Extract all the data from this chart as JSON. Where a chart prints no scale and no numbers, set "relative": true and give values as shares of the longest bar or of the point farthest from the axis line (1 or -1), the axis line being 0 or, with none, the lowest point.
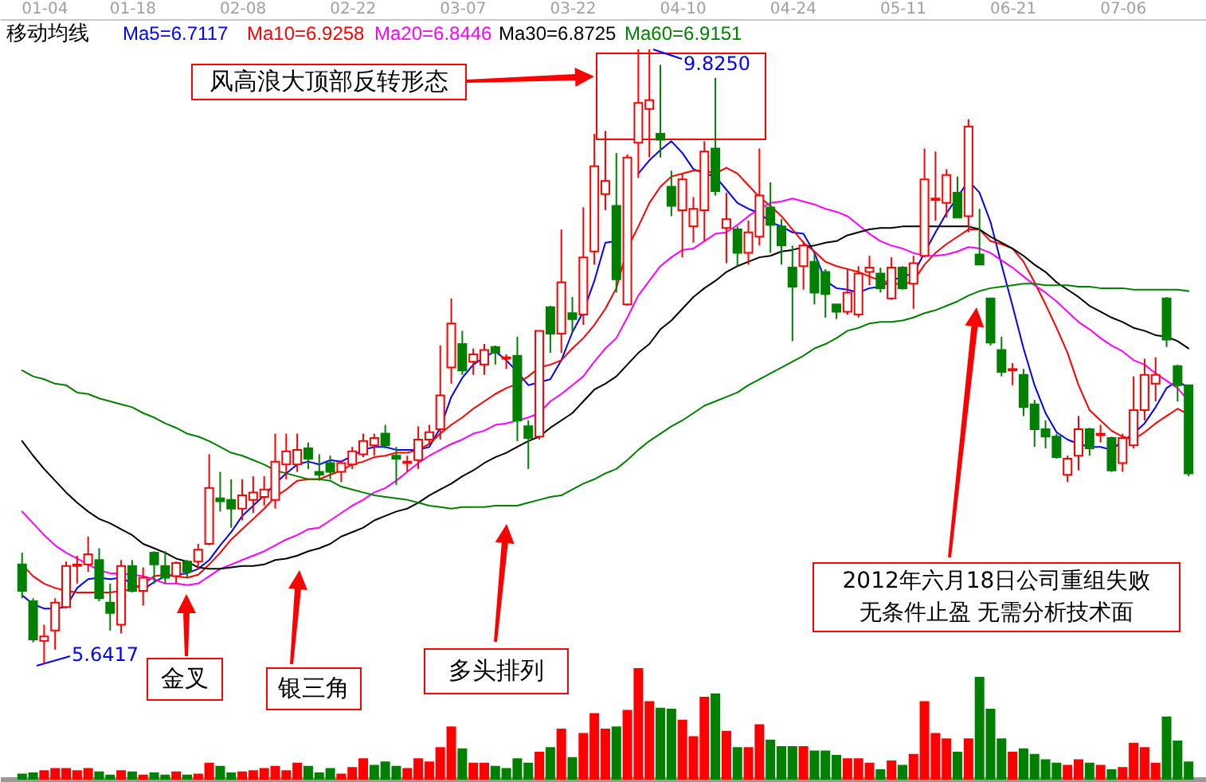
{
  "chart_data": [
    {
      "type": "candlestick",
      "title": "移动均线",
      "categories": [
        null,
        null,
        "01-04",
        null,
        null,
        null,
        null,
        null,
        null,
        null,
        "01-18",
        null,
        null,
        null,
        null,
        null,
        null,
        null,
        null,
        null,
        "02-08",
        null,
        null,
        null,
        null,
        null,
        null,
        null,
        null,
        null,
        "02-22",
        null,
        null,
        null,
        null,
        null,
        null,
        null,
        null,
        null,
        "03-07",
        null,
        null,
        null,
        null,
        null,
        null,
        null,
        null,
        null,
        "03-22",
        null,
        null,
        null,
        null,
        null,
        null,
        null,
        null,
        null,
        "04-10",
        null,
        null,
        null,
        null,
        null,
        null,
        null,
        null,
        null,
        "04-24",
        null,
        null,
        null,
        null,
        null,
        null,
        null,
        null,
        null,
        "05-11",
        null,
        null,
        null,
        null,
        null,
        null,
        null,
        null,
        null,
        "06-21",
        null,
        null,
        null,
        null,
        null,
        null,
        null,
        null,
        null,
        "07-06",
        null,
        null,
        null,
        null,
        null,
        null
      ],
      "ohlc": [
        [
          6.32,
          6.4,
          6.09,
          6.14
        ],
        [
          6.07,
          6.09,
          5.79,
          5.81
        ],
        [
          5.8,
          5.91,
          5.6417,
          5.83
        ],
        [
          5.87,
          6.09,
          5.74,
          6.06
        ],
        [
          6.03,
          6.34,
          6.02,
          6.31
        ],
        [
          6.31,
          6.38,
          6.19,
          6.32
        ],
        [
          6.32,
          6.51,
          6.27,
          6.39
        ],
        [
          6.35,
          6.43,
          6.07,
          6.09
        ],
        [
          6.06,
          6.19,
          5.87,
          5.99
        ],
        [
          5.91,
          6.35,
          5.85,
          6.31
        ],
        [
          6.31,
          6.35,
          6.13,
          6.14
        ],
        [
          6.14,
          6.3,
          6.04,
          6.23
        ],
        [
          6.4,
          6.41,
          6.19,
          6.32
        ],
        [
          6.31,
          6.41,
          6.19,
          6.23
        ],
        [
          6.24,
          6.34,
          6.19,
          6.33
        ],
        [
          6.34,
          6.35,
          6.23,
          6.27
        ],
        [
          6.34,
          6.46,
          6.29,
          6.42
        ],
        [
          6.46,
          7.07,
          6.45,
          6.84
        ],
        [
          6.77,
          6.95,
          6.68,
          6.75
        ],
        [
          6.76,
          6.9,
          6.57,
          6.7
        ],
        [
          6.7,
          6.9,
          6.62,
          6.79
        ],
        [
          6.76,
          6.92,
          6.67,
          6.81
        ],
        [
          6.78,
          6.92,
          6.72,
          6.83
        ],
        [
          6.76,
          7.21,
          6.7,
          7.02
        ],
        [
          7.0,
          7.21,
          6.9,
          7.09
        ],
        [
          7.0,
          7.21,
          6.95,
          7.1
        ],
        [
          7.11,
          7.15,
          6.97,
          7.04
        ],
        [
          6.95,
          7.07,
          6.89,
          6.93
        ],
        [
          7.01,
          7.06,
          6.9,
          6.95
        ],
        [
          6.95,
          7.03,
          6.88,
          7.01
        ],
        [
          7.0,
          7.12,
          6.97,
          7.09
        ],
        [
          7.07,
          7.21,
          7.05,
          7.16
        ],
        [
          7.13,
          7.21,
          7.06,
          7.18
        ],
        [
          7.21,
          7.27,
          7.11,
          7.13
        ],
        [
          7.06,
          7.12,
          6.86,
          7.04
        ],
        [
          7.01,
          7.06,
          6.95,
          7.02
        ],
        [
          7.03,
          7.26,
          6.97,
          7.17
        ],
        [
          7.17,
          7.27,
          7.14,
          7.22
        ],
        [
          7.24,
          7.81,
          7.17,
          7.47
        ],
        [
          7.66,
          8.13,
          7.55,
          7.96
        ],
        [
          7.82,
          7.91,
          7.61,
          7.64
        ],
        [
          7.7,
          7.79,
          7.61,
          7.75
        ],
        [
          7.68,
          7.82,
          7.61,
          7.78
        ],
        [
          7.8,
          7.81,
          7.68,
          7.76
        ],
        [
          7.72,
          7.75,
          7.65,
          7.73
        ],
        [
          7.74,
          7.87,
          7.16,
          7.3
        ],
        [
          7.26,
          7.3,
          6.97,
          7.18
        ],
        [
          7.19,
          7.91,
          7.17,
          7.91
        ],
        [
          8.07,
          8.08,
          7.76,
          7.89
        ],
        [
          7.89,
          8.6,
          7.76,
          8.24
        ],
        [
          8.03,
          8.14,
          7.9,
          7.99
        ],
        [
          8.02,
          8.75,
          7.95,
          8.41
        ],
        [
          8.45,
          9.25,
          8.36,
          9.03
        ],
        [
          8.84,
          9.27,
          8.73,
          8.93
        ],
        [
          8.76,
          9.12,
          8.17,
          8.26
        ],
        [
          8.09,
          9.11,
          8.08,
          9.09
        ],
        [
          9.19,
          9.825,
          8.95,
          9.46
        ],
        [
          9.42,
          9.825,
          9.09,
          9.48
        ],
        [
          9.25,
          9.72,
          9.09,
          9.21
        ],
        [
          8.89,
          9.0,
          8.69,
          8.76
        ],
        [
          8.73,
          8.98,
          8.41,
          8.94
        ],
        [
          8.62,
          8.82,
          8.51,
          8.74
        ],
        [
          8.73,
          9.2,
          8.52,
          9.13
        ],
        [
          9.15,
          9.63,
          8.83,
          8.86
        ],
        [
          8.61,
          8.85,
          8.37,
          8.67
        ],
        [
          8.6,
          8.62,
          8.35,
          8.44
        ],
        [
          8.44,
          8.66,
          8.36,
          8.58
        ],
        [
          8.55,
          9.15,
          8.49,
          8.83
        ],
        [
          8.75,
          8.92,
          8.44,
          8.63
        ],
        [
          8.62,
          8.67,
          8.36,
          8.49
        ],
        [
          8.34,
          8.49,
          7.84,
          8.21
        ],
        [
          8.35,
          8.52,
          8.19,
          8.49
        ],
        [
          8.38,
          8.44,
          8.09,
          8.17
        ],
        [
          8.31,
          8.33,
          8.0,
          8.16
        ],
        [
          8.09,
          8.09,
          7.99,
          8.04
        ],
        [
          8.04,
          8.33,
          8.02,
          8.17
        ],
        [
          8.02,
          8.35,
          8.0,
          8.3
        ],
        [
          8.31,
          8.42,
          8.22,
          8.34
        ],
        [
          8.3,
          8.34,
          8.17,
          8.2
        ],
        [
          8.13,
          8.41,
          8.12,
          8.34
        ],
        [
          8.34,
          8.35,
          8.19,
          8.2
        ],
        [
          8.23,
          8.42,
          8.06,
          8.37
        ],
        [
          8.42,
          9.15,
          8.41,
          8.94
        ],
        [
          8.8,
          9.13,
          8.66,
          8.81
        ],
        [
          8.78,
          9.01,
          8.68,
          8.97
        ],
        [
          8.85,
          8.96,
          8.68,
          8.68
        ],
        [
          8.69,
          9.35,
          8.58,
          9.3
        ],
        [
          8.43,
          8.74,
          8.36,
          8.36
        ],
        [
          8.13,
          8.13,
          7.81,
          7.83
        ],
        [
          7.78,
          7.87,
          7.6,
          7.63
        ],
        [
          7.64,
          7.69,
          7.54,
          7.65
        ],
        [
          7.61,
          7.65,
          7.33,
          7.39
        ],
        [
          7.41,
          7.44,
          7.12,
          7.24
        ],
        [
          7.24,
          7.3,
          7.11,
          7.19
        ],
        [
          7.19,
          7.21,
          7.04,
          7.05
        ],
        [
          6.93,
          7.06,
          6.88,
          7.04
        ],
        [
          7.06,
          7.33,
          6.96,
          7.24
        ],
        [
          7.24,
          7.25,
          7.06,
          7.11
        ],
        [
          7.2,
          7.27,
          7.15,
          7.21
        ],
        [
          7.18,
          7.19,
          6.95,
          6.96
        ],
        [
          7.01,
          7.21,
          6.95,
          7.18
        ],
        [
          7.13,
          7.6,
          7.11,
          7.37
        ],
        [
          7.37,
          7.72,
          7.3,
          7.61
        ],
        [
          7.55,
          7.73,
          7.43,
          7.61
        ],
        [
          8.13,
          8.14,
          7.8,
          7.85
        ],
        [
          7.67,
          7.68,
          7.43,
          7.54
        ],
        [
          7.54,
          7.54,
          6.92,
          6.94
        ]
      ],
      "series": [
        {
          "name": "Ma5=6.7117",
          "type": "line",
          "color": "#0000ff",
          "values": [
            6.11,
            6.05,
            6.02,
            6.02,
            6.03,
            6.16,
            6.22,
            6.23,
            6.22,
            6.23,
            6.19,
            6.15,
            6.2,
            6.24,
            6.25,
            6.26,
            6.29,
            6.35,
            6.45,
            6.54,
            6.65,
            6.72,
            6.79,
            6.87,
            6.94,
            7.0,
            7.02,
            7.0,
            7.03,
            7.02,
            7.06,
            7.1,
            7.12,
            7.12,
            7.1,
            7.1,
            7.1,
            7.12,
            7.25,
            7.46,
            7.59,
            7.68,
            7.73,
            7.77,
            7.71,
            7.63,
            7.54,
            7.56,
            7.58,
            7.71,
            7.9,
            8.04,
            8.25,
            8.51,
            8.52,
            null,
            8.98,
            9.07,
            9.14,
            9.2,
            9.12,
            9.01,
            8.98,
            8.96,
            8.87,
            8.78,
            8.74,
            8.71,
            8.65,
            8.62,
            8.58,
            8.57,
            8.44,
            8.25,
            8.2,
            8.19,
            8.17,
            8.2,
            8.21,
            8.25,
            8.28,
            8.3,
            8.44,
            8.58,
            8.71,
            8.82,
            8.93,
            8.85,
            8.65,
            8.36,
            8.08,
            7.79,
            7.54,
            7.35,
            7.22,
            7.17,
            7.14,
            7.12,
            7.12,
            7.1,
            7.16,
            7.21,
            7.28,
            7.39,
            7.52,
            7.57,
            7.52
          ]
        },
        {
          "name": "Ma10=6.9258",
          "type": "line",
          "color": "#ff0000",
          "values": [
            6.32,
            6.24,
            6.19,
            6.16,
            6.14,
            6.13,
            6.13,
            6.13,
            6.13,
            6.14,
            6.15,
            6.19,
            6.24,
            6.25,
            6.24,
            6.23,
            6.25,
            6.32,
            6.4,
            6.49,
            6.56,
            6.63,
            6.7,
            6.78,
            6.83,
            6.89,
            6.9,
            6.9,
            6.93,
            6.96,
            7.0,
            7.02,
            7.05,
            7.06,
            7.08,
            7.08,
            7.1,
            7.14,
            7.21,
            7.27,
            7.32,
            7.38,
            7.43,
            7.48,
            7.52,
            7.55,
            7.6,
            7.66,
            7.68,
            7.71,
            7.79,
            7.86,
            7.95,
            8.06,
            8.2,
            8.47,
            8.62,
            8.78,
            8.89,
            8.96,
            8.98,
            9.0,
            9.0,
            8.98,
            9.02,
            8.98,
            8.9,
            8.82,
            8.76,
            8.69,
            8.6,
            8.51,
            8.45,
            8.38,
            8.35,
            8.33,
            8.31,
            8.28,
            8.25,
            8.24,
            8.22,
            8.25,
            8.36,
            8.44,
            8.5,
            8.55,
            8.6,
            8.6,
            8.52,
            8.5,
            8.47,
            8.38,
            8.24,
            8.09,
            7.93,
            7.76,
            7.54,
            7.37,
            7.3,
            7.23,
            7.19,
            7.17,
            7.22,
            7.28,
            7.33,
            7.38,
            7.34
          ]
        },
        {
          "name": "Ma20=6.8446",
          "type": "line",
          "color": "#ff00ff",
          "values": [
            6.68,
            6.6,
            6.52,
            6.45,
            6.4,
            6.36,
            6.32,
            6.28,
            6.26,
            6.26,
            6.25,
            6.24,
            6.22,
            6.19,
            6.19,
            6.18,
            6.19,
            6.24,
            6.29,
            6.32,
            6.35,
            6.38,
            6.41,
            6.45,
            6.49,
            6.52,
            6.56,
            6.57,
            6.62,
            6.67,
            6.72,
            6.76,
            6.81,
            6.84,
            6.89,
            6.95,
            7.01,
            7.06,
            7.1,
            7.14,
            7.17,
            7.21,
            7.23,
            7.27,
            7.28,
            7.3,
            7.32,
            7.35,
            7.43,
            7.48,
            7.54,
            7.6,
            7.7,
            7.79,
            7.86,
            8.0,
            8.15,
            8.25,
            8.35,
            8.41,
            8.46,
            8.47,
            8.52,
            8.57,
            8.58,
            8.63,
            8.69,
            8.74,
            8.78,
            8.79,
            8.81,
            8.79,
            8.77,
            8.74,
            8.72,
            8.69,
            8.63,
            8.57,
            8.52,
            8.49,
            8.47,
            8.44,
            8.42,
            8.42,
            8.43,
            8.45,
            8.48,
            8.47,
            8.44,
            8.39,
            8.34,
            8.28,
            8.22,
            8.17,
            8.11,
            8.04,
            7.97,
            7.92,
            7.86,
            7.81,
            7.77,
            7.71,
            7.68,
            7.62,
            7.57,
            7.52,
            7.43
          ]
        },
        {
          "name": "Ma30=6.8725",
          "type": "line",
          "color": "#000000",
          "values": [
            7.16,
            7.06,
            6.97,
            6.89,
            6.81,
            6.74,
            6.68,
            6.63,
            6.6,
            6.56,
            6.52,
            6.46,
            6.43,
            6.4,
            6.36,
            6.34,
            6.3,
            6.29,
            6.29,
            6.3,
            6.31,
            6.31,
            6.32,
            6.35,
            6.36,
            6.38,
            6.41,
            6.43,
            6.46,
            6.51,
            6.54,
            6.57,
            6.62,
            6.65,
            6.68,
            6.7,
            6.74,
            6.79,
            6.83,
            6.87,
            6.92,
            6.96,
            7.01,
            7.05,
            7.08,
            7.12,
            7.16,
            7.19,
            7.25,
            7.3,
            7.35,
            7.43,
            7.51,
            7.55,
            7.6,
            7.68,
            7.76,
            7.82,
            7.92,
            7.98,
            8.06,
            8.14,
            8.2,
            8.25,
            8.31,
            8.35,
            8.38,
            8.41,
            8.42,
            8.45,
            8.46,
            8.48,
            8.49,
            8.51,
            8.52,
            8.56,
            8.58,
            8.6,
            8.61,
            8.61,
            8.62,
            8.62,
            8.62,
            8.62,
            8.62,
            8.62,
            8.62,
            8.6,
            8.55,
            8.51,
            8.47,
            8.42,
            8.36,
            8.31,
            8.24,
            8.19,
            8.14,
            8.08,
            8.04,
            8.0,
            7.97,
            7.93,
            7.91,
            7.88,
            7.87,
            7.84,
            7.79
          ]
        },
        {
          "name": "Ma60=6.9151",
          "type": "line",
          "color": "#008000",
          "values": [
            7.64,
            7.6,
            7.58,
            7.55,
            7.54,
            7.49,
            7.48,
            7.45,
            7.43,
            7.41,
            7.39,
            7.35,
            7.32,
            7.28,
            7.25,
            7.21,
            7.19,
            7.16,
            7.12,
            7.08,
            7.06,
            7.03,
            7.0,
            6.96,
            6.94,
            6.92,
            6.9,
            6.9,
            6.89,
            6.85,
            6.83,
            6.81,
            6.79,
            6.78,
            6.77,
            6.76,
            6.74,
            6.72,
            6.71,
            6.7,
            6.71,
            6.71,
            6.71,
            6.72,
            6.72,
            6.72,
            6.74,
            6.76,
            6.78,
            6.79,
            6.83,
            6.87,
            6.9,
            6.94,
            6.97,
            7.03,
            7.1,
            7.16,
            7.21,
            7.26,
            7.3,
            7.35,
            7.4,
            7.43,
            7.46,
            7.49,
            7.54,
            7.58,
            7.62,
            7.66,
            7.7,
            7.74,
            7.79,
            7.82,
            7.86,
            7.91,
            7.93,
            7.96,
            7.97,
            7.97,
            7.98,
            8.0,
            8.03,
            8.05,
            8.08,
            8.11,
            8.15,
            8.18,
            8.2,
            8.21,
            8.22,
            8.23,
            8.23,
            8.22,
            8.22,
            8.22,
            8.21,
            8.21,
            8.2,
            8.2,
            8.2,
            8.19,
            8.19,
            8.19,
            8.19,
            8.19,
            8.18
          ]
        }
      ],
      "annotations": [
        "风高浪大顶部反转形态",
        "9.8250",
        "5.6417",
        "金叉",
        "银三角",
        "多头排列",
        "2012年六月18日公司重组失败",
        "无条件止盈 无需分析技术面"
      ]
    },
    {
      "type": "bar",
      "relative": true,
      "categories": [
        null,
        null,
        null,
        null,
        null,
        null,
        null,
        null,
        null,
        null,
        null,
        null,
        null,
        null,
        null,
        null,
        null,
        null,
        null,
        null,
        null,
        null,
        null,
        null,
        null,
        null,
        null,
        null,
        null,
        null,
        null,
        null,
        null,
        null,
        null,
        null,
        null,
        null,
        null,
        null,
        null,
        null,
        null,
        null,
        null,
        null,
        null,
        null,
        null,
        null,
        null,
        null,
        null,
        null,
        null,
        null,
        null,
        null,
        null,
        null,
        null,
        null,
        null,
        null,
        null,
        null,
        null,
        null,
        null,
        null,
        null,
        null,
        null,
        null,
        null,
        null,
        null,
        null,
        null,
        null,
        null,
        null,
        null,
        null,
        null,
        null,
        null,
        null,
        null,
        null,
        null,
        null,
        null,
        null,
        null,
        null,
        null,
        null,
        null,
        null,
        null,
        null,
        null,
        null,
        null,
        null,
        null
      ],
      "values": [
        0.04,
        0.05,
        0.07,
        0.09,
        0.09,
        0.07,
        0.09,
        0.06,
        0.03,
        0.07,
        0.06,
        0.03,
        0.05,
        0.03,
        0.06,
        0.03,
        0.04,
        0.14,
        0.11,
        0.05,
        0.06,
        0.07,
        0.09,
        0.11,
        0.07,
        0.14,
        0.11,
        0.05,
        0.09,
        0.04,
        0.1,
        0.18,
        0.12,
        0.15,
        0.11,
        0.09,
        0.18,
        0.15,
        0.28,
        0.47,
        0.27,
        0.14,
        0.14,
        0.11,
        0.09,
        0.18,
        0.14,
        0.24,
        0.28,
        0.45,
        0.19,
        0.41,
        0.59,
        0.45,
        0.47,
        0.62,
        1,
        0.7,
        0.64,
        0.63,
        0.53,
        0.38,
        0.74,
        0.77,
        0.43,
        0.28,
        0.28,
        0.49,
        0.35,
        0.29,
        0.29,
        0.29,
        0.25,
        0.25,
        0.21,
        0.18,
        0.18,
        0.14,
        0.08,
        0.16,
        0.12,
        0.22,
        0.7,
        0.41,
        0.36,
        0.24,
        0.36,
        0.92,
        0.63,
        0.36,
        0.24,
        0.27,
        0.22,
        0.17,
        0.14,
        0.12,
        0.17,
        0.14,
        0.12,
        0.08,
        0.1,
        0.32,
        0.28,
        0.14,
        0.56,
        0.34,
        0.15
      ],
      "colors": [
        "#008000",
        "#008000",
        "#ff0000",
        "#ff0000",
        "#ff0000",
        "#ff0000",
        "#ff0000",
        "#008000",
        "#008000",
        "#ff0000",
        "#008000",
        "#ff0000",
        "#008000",
        "#008000",
        "#ff0000",
        "#008000",
        "#ff0000",
        "#ff0000",
        "#008000",
        "#008000",
        "#ff0000",
        "#ff0000",
        "#ff0000",
        "#ff0000",
        "#ff0000",
        "#ff0000",
        "#008000",
        "#008000",
        "#008000",
        "#ff0000",
        "#ff0000",
        "#ff0000",
        "#008000",
        "#008000",
        "#008000",
        "#ff0000",
        "#ff0000",
        "#ff0000",
        "#ff0000",
        "#ff0000",
        "#008000",
        "#ff0000",
        "#ff0000",
        "#008000",
        "#008000",
        "#008000",
        "#008000",
        "#ff0000",
        "#008000",
        "#ff0000",
        "#008000",
        "#ff0000",
        "#ff0000",
        "#ff0000",
        "#008000",
        "#ff0000",
        "#ff0000",
        "#ff0000",
        "#008000",
        "#008000",
        "#ff0000",
        "#ff0000",
        "#ff0000",
        "#008000",
        "#ff0000",
        "#008000",
        "#ff0000",
        "#ff0000",
        "#008000",
        "#008000",
        "#008000",
        "#ff0000",
        "#008000",
        "#008000",
        "#008000",
        "#ff0000",
        "#ff0000",
        "#ff0000",
        "#008000",
        "#ff0000",
        "#008000",
        "#ff0000",
        "#ff0000",
        "#ff0000",
        "#ff0000",
        "#008000",
        "#ff0000",
        "#008000",
        "#008000",
        "#008000",
        "#ff0000",
        "#008000",
        "#008000",
        "#008000",
        "#008000",
        "#ff0000",
        "#ff0000",
        "#008000",
        "#ff0000",
        "#008000",
        "#ff0000",
        "#ff0000",
        "#ff0000",
        "#ff0000",
        "#008000",
        "#008000",
        "#008000"
      ]
    }
  ]
}
